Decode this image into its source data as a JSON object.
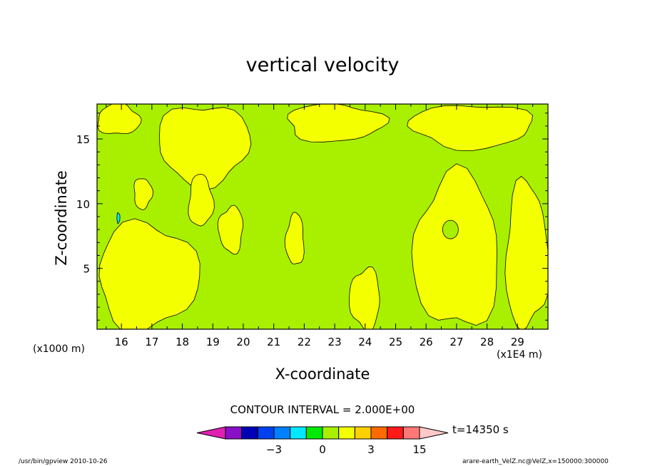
{
  "chart_data": {
    "type": "contour",
    "title": "vertical velocity",
    "xlabel": "X-coordinate",
    "ylabel": "Z-coordinate",
    "x_unit_left": "(x1000 m)",
    "x_unit_right": "(x1E4 m)",
    "xlim": [
      15.2,
      30.0
    ],
    "ylim": [
      0.3,
      17.7
    ],
    "x_ticks": [
      16,
      17,
      18,
      19,
      20,
      21,
      22,
      23,
      24,
      25,
      26,
      27,
      28,
      29
    ],
    "y_ticks": [
      5,
      10,
      15
    ],
    "contour_interval_label": "CONTOUR INTERVAL = 2.000E+00",
    "time_label": "t=14350 s",
    "colorbar": {
      "levels": [
        -15,
        -9,
        -5,
        -3,
        -2,
        -1,
        0,
        1,
        2,
        3,
        5,
        9,
        15
      ],
      "colors": [
        "#e020b0",
        "#8a10c8",
        "#0000b4",
        "#0040f0",
        "#0080ff",
        "#00e8ff",
        "#00ea00",
        "#a8f000",
        "#f4ff00",
        "#ffd000",
        "#ff6a00",
        "#ff1a1a",
        "#ff7878",
        "#ffc8c8"
      ],
      "tick_labels": [
        {
          "value": -3,
          "text": "−3"
        },
        {
          "value": 0,
          "text": "0"
        },
        {
          "value": 3,
          "text": "3"
        },
        {
          "value": 15,
          "text": "15"
        }
      ]
    },
    "regions": {
      "background_value": 0.8,
      "positive_blobs": [
        {
          "x": [
            15.2,
            16.6
          ],
          "z": [
            15.3,
            17.7
          ]
        },
        {
          "x": [
            15.2,
            18.5
          ],
          "z": [
            0.3,
            8.5
          ]
        },
        {
          "x": [
            17.2,
            20.2
          ],
          "z": [
            11.5,
            17.7
          ]
        },
        {
          "x": [
            19.2,
            20.0
          ],
          "z": [
            6.2,
            9.8
          ]
        },
        {
          "x": [
            21.4,
            22.0
          ],
          "z": [
            5.2,
            9.2
          ]
        },
        {
          "x": [
            18.2,
            19.0
          ],
          "z": [
            8.2,
            12.2
          ]
        },
        {
          "x": [
            21.4,
            24.6
          ],
          "z": [
            14.8,
            17.7
          ]
        },
        {
          "x": [
            25.5,
            29.5
          ],
          "z": [
            14.3,
            17.7
          ]
        },
        {
          "x": [
            23.5,
            24.5
          ],
          "z": [
            0.3,
            5.0
          ]
        },
        {
          "x": [
            25.6,
            28.4
          ],
          "z": [
            0.3,
            12.2
          ]
        },
        {
          "x": [
            28.6,
            30.0
          ],
          "z": [
            0.3,
            11.6
          ]
        },
        {
          "x": [
            16.4,
            17.0
          ],
          "z": [
            9.6,
            12.0
          ]
        }
      ],
      "negative_blobs": [
        {
          "x": [
            15.85,
            15.95
          ],
          "z": [
            8.5,
            9.3
          ],
          "value": -1.5
        }
      ]
    }
  },
  "footer": {
    "left": "/usr/bin/gpview   2010-10-26",
    "right": "arare-earth_VelZ.nc@VelZ,x=150000:300000"
  }
}
